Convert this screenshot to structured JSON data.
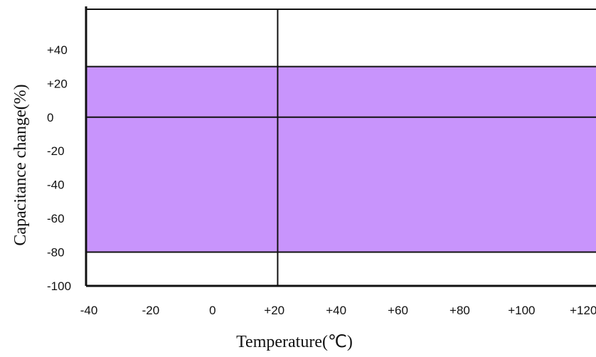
{
  "chart_data": {
    "type": "area",
    "title": "",
    "xlabel": "Temperature(℃)",
    "ylabel": "Capacitance change(%)",
    "xlim": [
      -40,
      125
    ],
    "ylim": [
      -100,
      64
    ],
    "x_ticks": [
      "-40",
      "-20",
      "0",
      "+20",
      "+40",
      "+60",
      "+80",
      "+100",
      "+120"
    ],
    "x_tick_values": [
      -40,
      -20,
      0,
      20,
      40,
      60,
      80,
      100,
      120
    ],
    "y_ticks": [
      "+40",
      "+20",
      "0",
      "-20",
      "-40",
      "-60",
      "-80",
      "-100"
    ],
    "y_tick_values": [
      40,
      20,
      0,
      -20,
      -40,
      -60,
      -80,
      -100
    ],
    "band": {
      "x_start": -40,
      "x_end": 125,
      "y_top": 30,
      "y_bottom": -80
    },
    "reference_lines": {
      "y": [
        0,
        64
      ],
      "x": [
        22
      ]
    },
    "grid": false,
    "colors": {
      "band_fill": "#c894fc",
      "lines": "#111111"
    }
  }
}
